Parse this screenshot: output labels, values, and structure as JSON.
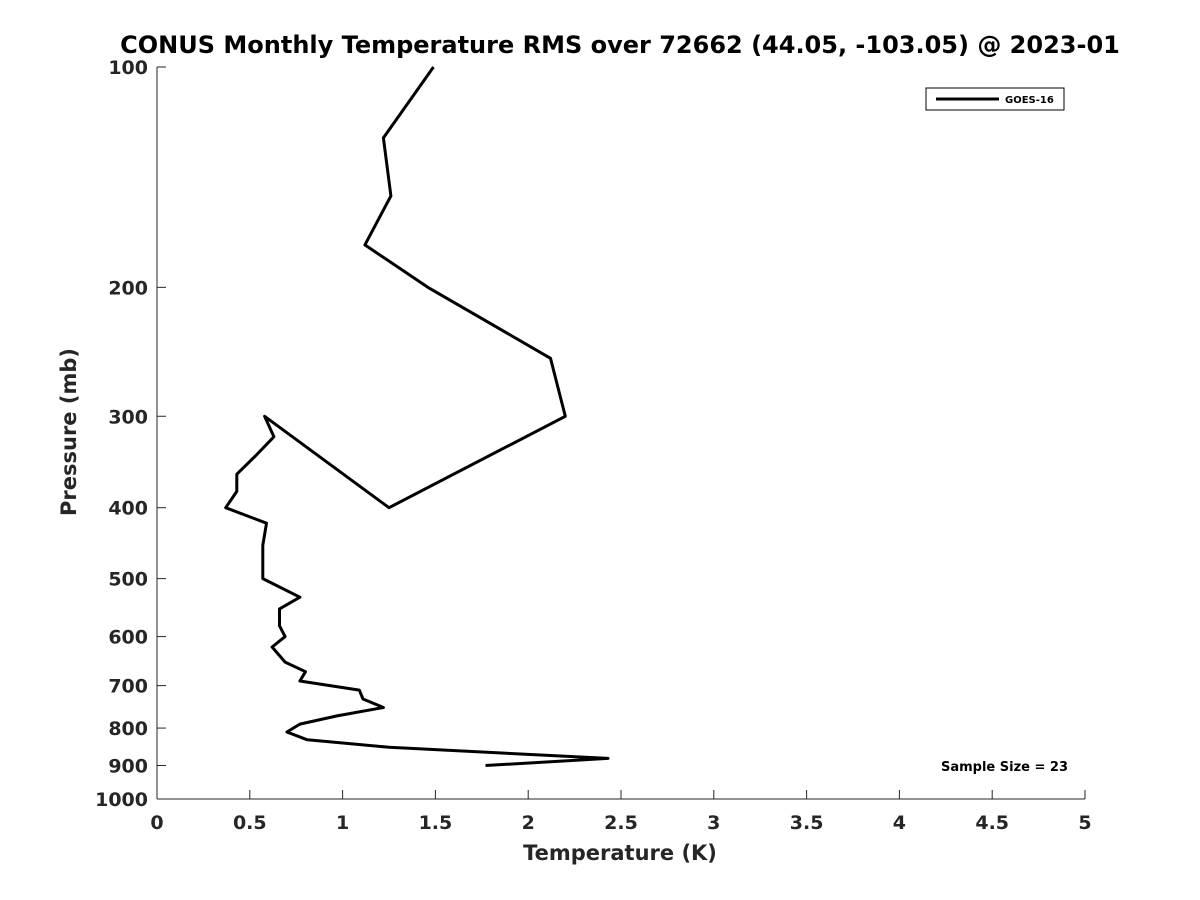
{
  "chart_data": {
    "type": "line",
    "title": "CONUS Monthly Temperature RMS over 72662 (44.05, -103.05) @ 2023-01",
    "xlabel": "Temperature (K)",
    "ylabel": "Pressure (mb)",
    "xlim": [
      0,
      5
    ],
    "ylim": [
      100,
      1000
    ],
    "y_scale": "log",
    "y_reversed": true,
    "grid": false,
    "x_ticks": [
      0,
      0.5,
      1,
      1.5,
      2,
      2.5,
      3,
      3.5,
      4,
      4.5,
      5
    ],
    "x_tick_labels": [
      "0",
      "0.5",
      "1",
      "1.5",
      "2",
      "2.5",
      "3",
      "3.5",
      "4",
      "4.5",
      "5"
    ],
    "y_ticks": [
      100,
      200,
      300,
      400,
      500,
      600,
      700,
      800,
      900,
      1000
    ],
    "y_tick_labels": [
      "100",
      "200",
      "300",
      "400",
      "500",
      "600",
      "700",
      "800",
      "900",
      "1000"
    ],
    "legend": {
      "position": "top-right",
      "entries": [
        "GOES-16"
      ]
    },
    "annotation": "Sample Size = 23",
    "series": [
      {
        "name": "GOES-16",
        "color": "#000000",
        "points": [
          {
            "x": 1.49,
            "p": 100
          },
          {
            "x": 1.22,
            "p": 125
          },
          {
            "x": 1.26,
            "p": 150
          },
          {
            "x": 1.12,
            "p": 175
          },
          {
            "x": 1.46,
            "p": 200
          },
          {
            "x": 2.12,
            "p": 250
          },
          {
            "x": 2.2,
            "p": 300
          },
          {
            "x": 1.25,
            "p": 400
          },
          {
            "x": 0.58,
            "p": 300
          },
          {
            "x": 0.63,
            "p": 320
          },
          {
            "x": 0.53,
            "p": 340
          },
          {
            "x": 0.43,
            "p": 360
          },
          {
            "x": 0.43,
            "p": 380
          },
          {
            "x": 0.37,
            "p": 400
          },
          {
            "x": 0.59,
            "p": 420
          },
          {
            "x": 0.57,
            "p": 450
          },
          {
            "x": 0.57,
            "p": 480
          },
          {
            "x": 0.57,
            "p": 500
          },
          {
            "x": 0.77,
            "p": 530
          },
          {
            "x": 0.66,
            "p": 550
          },
          {
            "x": 0.66,
            "p": 580
          },
          {
            "x": 0.69,
            "p": 600
          },
          {
            "x": 0.62,
            "p": 620
          },
          {
            "x": 0.69,
            "p": 650
          },
          {
            "x": 0.8,
            "p": 670
          },
          {
            "x": 0.77,
            "p": 690
          },
          {
            "x": 1.09,
            "p": 710
          },
          {
            "x": 1.11,
            "p": 730
          },
          {
            "x": 1.22,
            "p": 750
          },
          {
            "x": 0.97,
            "p": 770
          },
          {
            "x": 0.77,
            "p": 790
          },
          {
            "x": 0.7,
            "p": 810
          },
          {
            "x": 0.81,
            "p": 830
          },
          {
            "x": 1.25,
            "p": 850
          },
          {
            "x": 2.43,
            "p": 880
          },
          {
            "x": 1.77,
            "p": 900
          }
        ]
      }
    ]
  }
}
